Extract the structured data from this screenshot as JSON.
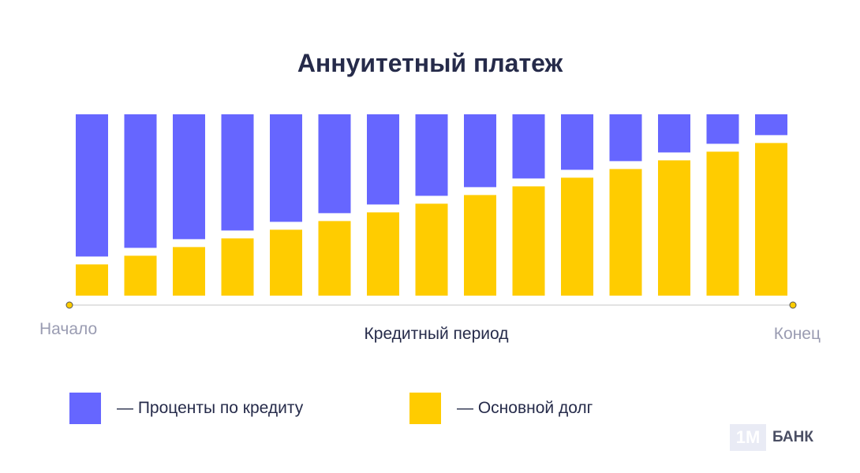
{
  "chart_data": {
    "type": "bar",
    "stacked": true,
    "title": "Аннуитетный платеж",
    "xlabel": "Кредитный период",
    "x_start_label": "Начало",
    "x_end_label": "Конец",
    "categories": [
      "",
      "",
      "",
      "",
      "",
      "",
      "",
      "",
      "",
      "",
      "",
      "",
      "",
      "",
      ""
    ],
    "series": [
      {
        "name": "Основной долг",
        "color": "#ffcc00",
        "values": [
          18,
          23,
          28,
          33,
          38,
          43,
          48,
          53,
          58,
          63,
          68,
          73,
          78,
          83,
          88
        ]
      },
      {
        "name": "Проценты по кредиту",
        "color": "#6666ff",
        "values": [
          82,
          77,
          72,
          67,
          62,
          57,
          52,
          47,
          42,
          37,
          32,
          27,
          22,
          17,
          12
        ]
      }
    ],
    "ylim": [
      0,
      100
    ],
    "grid": false,
    "legend_position": "bottom",
    "axis_color": "#e3e3e3",
    "endpoint_color": "#ffcc00"
  },
  "legend": {
    "interest_label": "— Проценты по кредиту",
    "principal_label": "— Основной долг"
  },
  "logo": {
    "mark": "1М",
    "text": "БАНК"
  }
}
